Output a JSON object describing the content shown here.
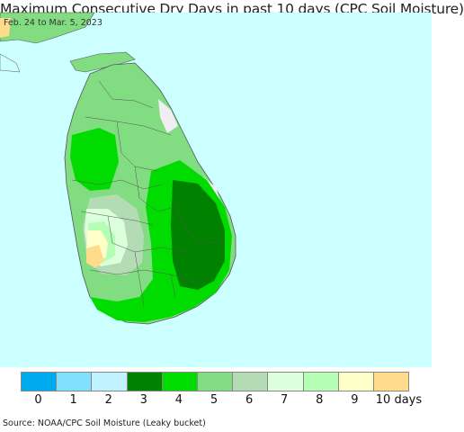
{
  "title": "Maximum Consecutive Dry Days in past 10 days (CPC Soil Moisture)",
  "subtitle": "Feb. 24 to Mar. 5, 2023",
  "source": "Source: NOAA/CPC Soil Moisture (Leaky bucket)",
  "colors": {
    "ocean": "#ccffff",
    "c5": "#82dc82",
    "c4": "#00dc00",
    "c3": "#008200",
    "c6": "#b4dcb4",
    "c7": "#dcffdc",
    "c8": "#b4ffb4",
    "c9": "#ffffc8",
    "c10": "#ffdc8c",
    "nodata": "#f0eef2",
    "boundary": "#555555"
  },
  "legend": {
    "colors": [
      "#00aaee",
      "#82e0ff",
      "#c0f2ff",
      "#008200",
      "#00dc00",
      "#82dc82",
      "#b4dcb4",
      "#dcffdc",
      "#b4ffb4",
      "#ffffc8",
      "#ffdc8c"
    ],
    "labels": [
      "0",
      "1",
      "2",
      "3",
      "4",
      "5",
      "6",
      "7",
      "8",
      "9",
      "10 days"
    ]
  }
}
